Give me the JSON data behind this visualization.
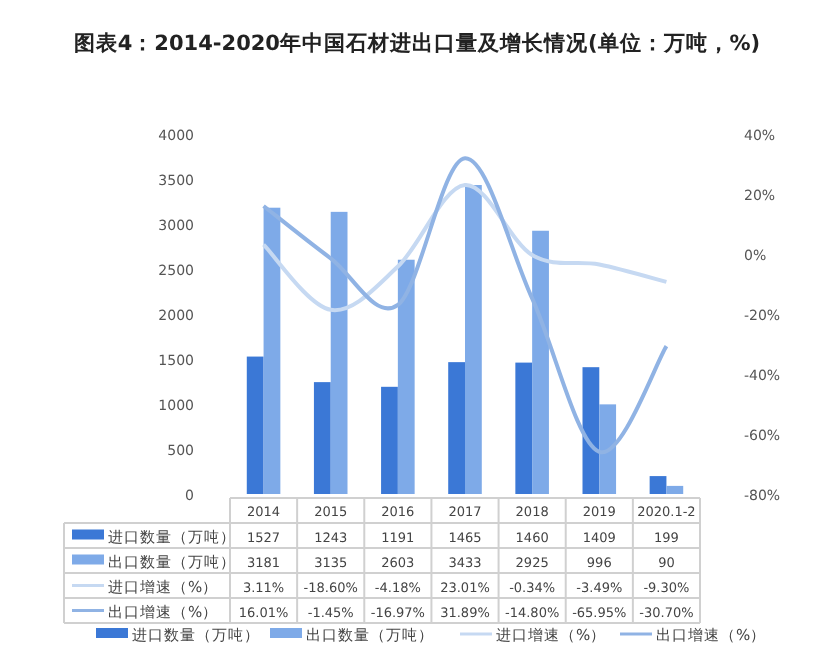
{
  "chart_data": {
    "type": "bar",
    "title": "图表4：2014-2020年中国石材进出口量及增长情况(单位：万吨，%)",
    "categories": [
      "2014",
      "2015",
      "2016",
      "2017",
      "2018",
      "2019",
      "2020.1-2"
    ],
    "series": [
      {
        "name": "进口数量（万吨）",
        "color": "#3b78d6",
        "values": [
          1527,
          1243,
          1191,
          1465,
          1460,
          1409,
          199
        ],
        "value_labels": [
          "1527",
          "1243",
          "1191",
          "1465",
          "1460",
          "1409",
          "199"
        ]
      },
      {
        "name": "出口数量（万吨）",
        "color": "#7eaae8",
        "values": [
          3181,
          3135,
          2603,
          3433,
          2925,
          996,
          90
        ],
        "value_labels": [
          "3181",
          "3135",
          "2603",
          "3433",
          "2925",
          "996",
          "90"
        ]
      },
      {
        "name": "进口增速（%）",
        "type": "line",
        "axis": "y2",
        "color": "#c6d9f2",
        "values": [
          3.11,
          -18.6,
          -4.18,
          23.01,
          -0.34,
          -3.49,
          -9.3
        ],
        "value_labels": [
          "3.11%",
          "-18.60%",
          "-4.18%",
          "23.01%",
          "-0.34%",
          "-3.49%",
          "-9.30%"
        ]
      },
      {
        "name": "出口增速（%）",
        "type": "line",
        "axis": "y2",
        "color": "#90b3e4",
        "values": [
          16.01,
          -1.45,
          -16.97,
          31.89,
          -14.8,
          -65.95,
          -30.7
        ],
        "value_labels": [
          "16.01%",
          "-1.45%",
          "-16.97%",
          "31.89%",
          "-14.80%",
          "-65.95%",
          "-30.70%"
        ]
      }
    ],
    "ylim": [
      0,
      4000
    ],
    "yticks": [
      0,
      500,
      1000,
      1500,
      2000,
      2500,
      3000,
      3500,
      4000
    ],
    "y2lim": [
      -80,
      40
    ],
    "y2ticks": [
      {
        "value": -80,
        "label": "-80%"
      },
      {
        "value": -60,
        "label": "-60%"
      },
      {
        "value": -40,
        "label": "-40%"
      },
      {
        "value": -20,
        "label": "-20%"
      },
      {
        "value": 0,
        "label": "0%"
      },
      {
        "value": 20,
        "label": "20%"
      },
      {
        "value": 40,
        "label": "40%"
      }
    ],
    "legend": "bottom",
    "grid": false
  }
}
